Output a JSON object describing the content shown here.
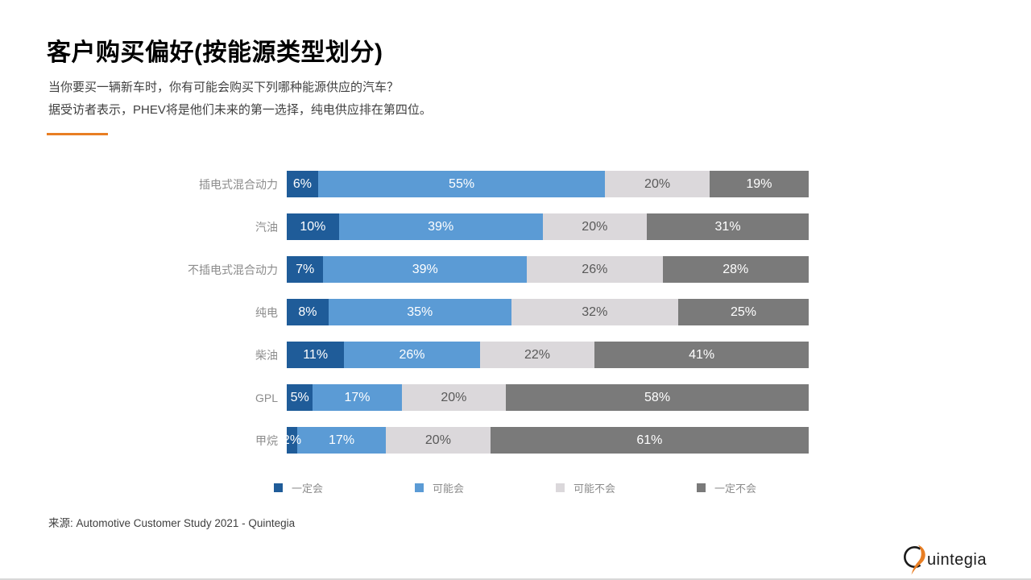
{
  "header": {
    "title": "客户购买偏好(按能源类型划分)",
    "subtitle_line1": "当你要买一辆新车时，你有可能会购买下列哪种能源供应的汽车？",
    "subtitle_line2": "据受访者表示，PHEV将是他们未来的第一选择，纯电供应排在第四位。"
  },
  "colors": {
    "accent_orange": "#E87E23",
    "definitely_yes_blue": "#1F5C99",
    "maybe_yes_blue": "#5B9BD5",
    "maybe_no_gray": "#DBD8DB",
    "definitely_no_gray": "#7A7A7A"
  },
  "chart_data": {
    "type": "bar",
    "orientation": "horizontal",
    "stacked": true,
    "xlim": [
      0,
      100
    ],
    "value_suffix": "%",
    "grid": false,
    "legend_position": "bottom",
    "categories": [
      "插电式混合动力",
      "汽油",
      "不插电式混合动力",
      "纯电",
      "柴油",
      "GPL",
      "甲烷"
    ],
    "series": [
      {
        "name": "一定会",
        "color": "#1F5C99",
        "label_color": "#FFFFFF",
        "values": [
          6,
          10,
          7,
          8,
          11,
          5,
          2
        ]
      },
      {
        "name": "可能会",
        "color": "#5B9BD5",
        "label_color": "#FFFFFF",
        "values": [
          55,
          39,
          39,
          35,
          26,
          17,
          17
        ]
      },
      {
        "name": "可能不会",
        "color": "#DBD8DB",
        "label_color": "#595959",
        "values": [
          20,
          20,
          26,
          32,
          22,
          20,
          20
        ]
      },
      {
        "name": "一定不会",
        "color": "#7A7A7A",
        "label_color": "#FFFFFF",
        "values": [
          19,
          31,
          28,
          25,
          41,
          58,
          61
        ]
      }
    ]
  },
  "footer": {
    "source": "来源: Automotive Customer Study 2021 -  Quintegia",
    "logo_text": "uintegia"
  }
}
